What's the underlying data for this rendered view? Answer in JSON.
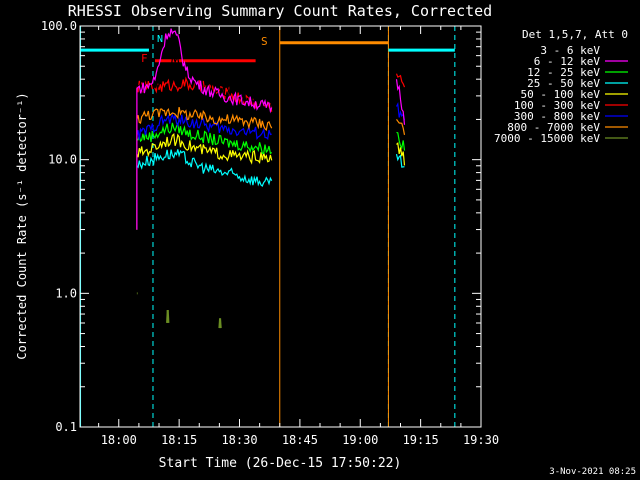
{
  "chart_data": {
    "type": "line",
    "title": "RHESSI Observing Summary Count Rates, Corrected",
    "xlabel": "Start Time (26-Dec-15 17:50:22)",
    "ylabel": "Corrected Count Rate (s⁻¹ detector⁻¹)",
    "y_scale": "log",
    "ylim": [
      0.1,
      100.0
    ],
    "xlim": [
      "17:50:22",
      "19:30:00"
    ],
    "x_ticks": [
      "18:00",
      "18:15",
      "18:30",
      "18:45",
      "19:00",
      "19:15",
      "19:30"
    ],
    "y_ticks": [
      "0.1",
      "1.0",
      "10.0",
      "100.0"
    ],
    "legend_title": "Det 1,5,7, Att 0",
    "legend_position": "right",
    "footer": "3-Nov-2021 08:25",
    "series": [
      {
        "name": "3 - 6 keV",
        "color": "#000000",
        "points": [
          [
            "18:04:30",
            34
          ],
          [
            "18:06",
            35
          ],
          [
            "18:08",
            36
          ],
          [
            "18:10",
            38
          ],
          [
            "18:12",
            48
          ],
          [
            "18:13",
            52
          ],
          [
            "18:14",
            55
          ],
          [
            "18:16",
            48
          ],
          [
            "18:18",
            42
          ],
          [
            "18:21",
            37
          ],
          [
            "18:24",
            33
          ],
          [
            "18:27",
            31
          ],
          [
            "18:30",
            29
          ],
          [
            "18:33",
            27
          ],
          [
            "18:36",
            26
          ],
          [
            "18:38",
            25
          ]
        ]
      },
      {
        "name": "6 - 12 keV",
        "color": "#ff00ff",
        "points": [
          [
            "18:04:30",
            34
          ],
          [
            "18:07",
            35
          ],
          [
            "18:09",
            40
          ],
          [
            "18:11",
            70
          ],
          [
            "18:12",
            88
          ],
          [
            "18:13",
            92
          ],
          [
            "18:14",
            86
          ],
          [
            "18:15",
            75
          ],
          [
            "18:16",
            55
          ],
          [
            "18:17",
            45
          ],
          [
            "18:19",
            38
          ],
          [
            "18:22",
            33
          ],
          [
            "18:26",
            30
          ],
          [
            "18:30",
            28
          ],
          [
            "18:35",
            26
          ],
          [
            "18:38",
            24
          ],
          [
            "19:09",
            40
          ],
          [
            "19:10",
            30
          ],
          [
            "19:11",
            20
          ]
        ]
      },
      {
        "name": "12 - 25 keV",
        "color": "#00ff00",
        "points": [
          [
            "18:04:30",
            14
          ],
          [
            "18:06",
            15
          ],
          [
            "18:08",
            15
          ],
          [
            "18:10",
            16
          ],
          [
            "18:12",
            17
          ],
          [
            "18:14",
            17.5
          ],
          [
            "18:16",
            16.5
          ],
          [
            "18:18",
            15.5
          ],
          [
            "18:22",
            14.5
          ],
          [
            "18:26",
            13.5
          ],
          [
            "18:30",
            13
          ],
          [
            "18:34",
            12.5
          ],
          [
            "18:38",
            12
          ],
          [
            "19:09",
            16
          ],
          [
            "19:11",
            12
          ]
        ]
      },
      {
        "name": "25 - 50 keV",
        "color": "#00ffff",
        "points": [
          [
            "18:04:30",
            9
          ],
          [
            "18:06",
            9.5
          ],
          [
            "18:08",
            10
          ],
          [
            "18:10",
            10.5
          ],
          [
            "18:12",
            11
          ],
          [
            "18:14",
            11
          ],
          [
            "18:16",
            10.5
          ],
          [
            "18:18",
            9.5
          ],
          [
            "18:22",
            8.5
          ],
          [
            "18:26",
            8
          ],
          [
            "18:30",
            7.5
          ],
          [
            "18:34",
            7
          ],
          [
            "18:38",
            6.5
          ],
          [
            "19:09",
            11
          ],
          [
            "19:11",
            8.5
          ]
        ]
      },
      {
        "name": "50 - 100 keV",
        "color": "#ffff00",
        "points": [
          [
            "18:04:30",
            11
          ],
          [
            "18:06",
            11.5
          ],
          [
            "18:08",
            12
          ],
          [
            "18:10",
            13
          ],
          [
            "18:12",
            14
          ],
          [
            "18:14",
            14
          ],
          [
            "18:16",
            13.5
          ],
          [
            "18:18",
            12.5
          ],
          [
            "18:22",
            11.5
          ],
          [
            "18:26",
            11
          ],
          [
            "18:30",
            10.5
          ],
          [
            "18:34",
            10.5
          ],
          [
            "18:38",
            10
          ],
          [
            "19:09",
            13
          ],
          [
            "19:11",
            10
          ]
        ]
      },
      {
        "name": "100 - 300 keV",
        "color": "#ff0000",
        "points": [
          [
            "18:04:30",
            35
          ],
          [
            "18:06",
            35
          ],
          [
            "18:08",
            35
          ],
          [
            "18:10",
            35
          ],
          [
            "18:12",
            36
          ],
          [
            "18:14",
            36
          ],
          [
            "18:16",
            37
          ],
          [
            "18:18",
            36
          ],
          [
            "18:21",
            35
          ],
          [
            "18:24",
            33
          ],
          [
            "18:27",
            31
          ],
          [
            "18:30",
            29
          ],
          [
            "18:33",
            27
          ],
          [
            "18:36",
            26
          ],
          [
            "18:38",
            25
          ],
          [
            "19:09",
            44
          ],
          [
            "19:10",
            40
          ],
          [
            "19:11",
            36
          ]
        ]
      },
      {
        "name": "300 - 800 keV",
        "color": "#0000ff",
        "points": [
          [
            "18:04:30",
            15
          ],
          [
            "18:06",
            16
          ],
          [
            "18:08",
            17
          ],
          [
            "18:10",
            19
          ],
          [
            "18:12",
            20
          ],
          [
            "18:14",
            20
          ],
          [
            "18:16",
            19.5
          ],
          [
            "18:18",
            19
          ],
          [
            "18:22",
            18
          ],
          [
            "18:26",
            17
          ],
          [
            "18:30",
            16.5
          ],
          [
            "18:34",
            16
          ],
          [
            "18:38",
            15
          ],
          [
            "19:09",
            25
          ],
          [
            "19:11",
            19
          ]
        ]
      },
      {
        "name": "800 - 7000 keV",
        "color": "#ff8c00",
        "points": [
          [
            "18:04:30",
            20
          ],
          [
            "18:06",
            21
          ],
          [
            "18:08",
            22
          ],
          [
            "18:10",
            22
          ],
          [
            "18:12",
            23
          ],
          [
            "18:14",
            23
          ],
          [
            "18:16",
            22
          ],
          [
            "18:18",
            21.5
          ],
          [
            "18:22",
            20.5
          ],
          [
            "18:26",
            20
          ],
          [
            "18:30",
            19.5
          ],
          [
            "18:34",
            19
          ],
          [
            "18:38",
            18
          ],
          [
            "19:09",
            20
          ],
          [
            "19:11",
            17
          ]
        ]
      },
      {
        "name": "7000 - 15000 keV",
        "color": "#6b8e23",
        "points": [
          [
            "18:04:30",
            1.0
          ],
          [
            "18:04:40",
            1.0
          ],
          [
            "18:12",
            0.6
          ],
          [
            "18:12:10",
            0.75
          ],
          [
            "18:12:20",
            0.6
          ],
          [
            "18:25",
            0.55
          ],
          [
            "18:25:10",
            0.65
          ],
          [
            "18:25:20",
            0.55
          ]
        ]
      }
    ],
    "annotations": {
      "night_bars": {
        "color": "#00ffff",
        "segments": [
          [
            "17:50:22",
            "18:07:30",
            66
          ],
          [
            "19:07:00",
            "19:23:30",
            66
          ]
        ]
      },
      "saa_bar": {
        "label": "S",
        "color": "#ff8c00",
        "segments": [
          [
            "18:40:00",
            "19:07:00",
            75
          ]
        ]
      },
      "flare_bar": {
        "label": "F",
        "color": "#ff0000",
        "segments": [
          [
            "18:09:00",
            "18:34:00",
            55
          ]
        ]
      },
      "night_marker_label": "N",
      "vertical_lines": [
        {
          "t": "18:08:30",
          "color": "#00ffff",
          "style": "dashed"
        },
        {
          "t": "18:40:00",
          "color": "#ff8c00",
          "style": "solid"
        },
        {
          "t": "19:07:00",
          "color": "#00ffff",
          "style": "dashed"
        },
        {
          "t": "19:07:00",
          "color": "#ff8c00",
          "style": "solid"
        },
        {
          "t": "19:23:30",
          "color": "#00ffff",
          "style": "dashed"
        },
        {
          "t": "17:50:30",
          "color": "#00ffff",
          "style": "solid"
        }
      ]
    }
  }
}
